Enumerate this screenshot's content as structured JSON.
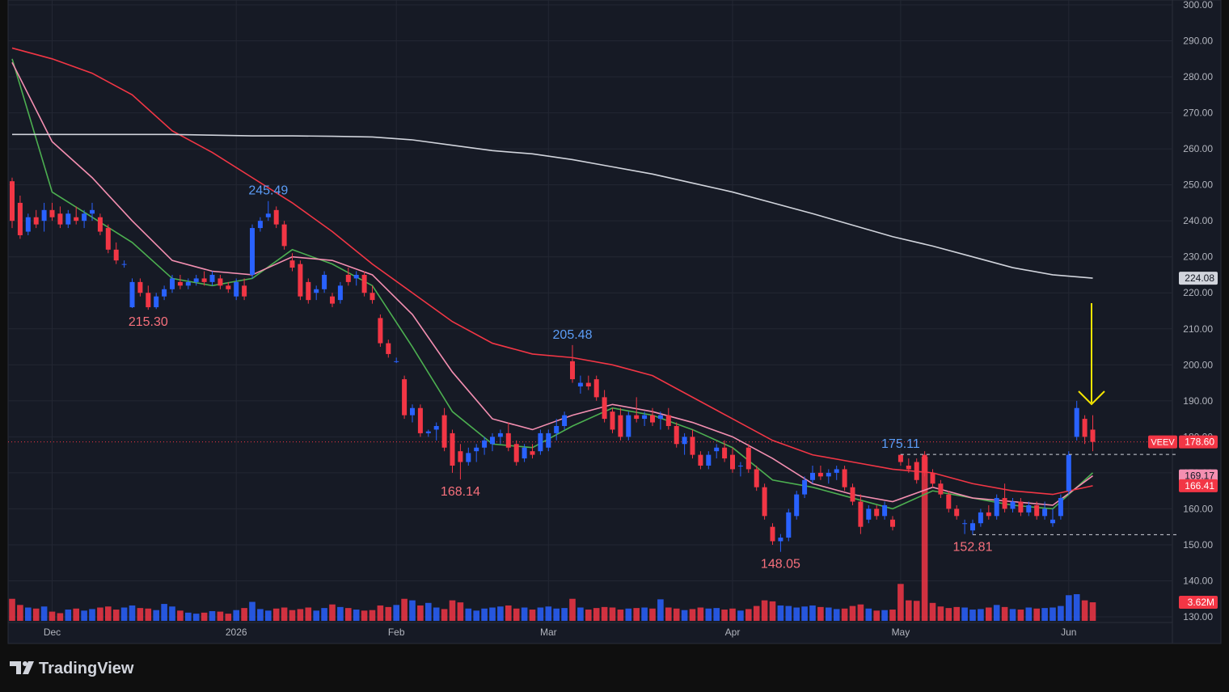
{
  "chart_data": {
    "type": "candlestick",
    "symbol": "VEEV",
    "ylim": [
      130,
      300
    ],
    "yticks": [
      {
        "value": 130,
        "label": "130.00"
      },
      {
        "value": 140,
        "label": "140.00"
      },
      {
        "value": 150,
        "label": "150.00"
      },
      {
        "value": 160,
        "label": "160.00"
      },
      {
        "value": 170,
        "label": "170.00"
      },
      {
        "value": 180,
        "label": "180.00"
      },
      {
        "value": 190,
        "label": "190.00"
      },
      {
        "value": 200,
        "label": "200.00"
      },
      {
        "value": 210,
        "label": "210.00"
      },
      {
        "value": 220,
        "label": "220.00"
      },
      {
        "value": 230,
        "label": "230.00"
      },
      {
        "value": 240,
        "label": "240.00"
      },
      {
        "value": 250,
        "label": "250.00"
      },
      {
        "value": 260,
        "label": "260.00"
      },
      {
        "value": 270,
        "label": "270.00"
      },
      {
        "value": 280,
        "label": "280.00"
      },
      {
        "value": 290,
        "label": "290.00"
      },
      {
        "value": 300,
        "label": "300.00"
      }
    ],
    "xticks": [
      {
        "value": 5,
        "label": "Dec"
      },
      {
        "value": 28,
        "label": "2026"
      },
      {
        "value": 48,
        "label": "Feb"
      },
      {
        "value": 67,
        "label": "Mar"
      },
      {
        "value": 90,
        "label": "Apr"
      },
      {
        "value": 111,
        "label": "May"
      },
      {
        "value": 132,
        "label": "Jun"
      }
    ],
    "grid": true,
    "up_color": "#2962ff",
    "down_color": "#f23645",
    "candles": [
      [
        251,
        252,
        238,
        240
      ],
      [
        245,
        247,
        235,
        236
      ],
      [
        237,
        242,
        236,
        241
      ],
      [
        241,
        243,
        238,
        239
      ],
      [
        240,
        245,
        237,
        243
      ],
      [
        243,
        245,
        240,
        241
      ],
      [
        242,
        244,
        238,
        239
      ],
      [
        239,
        243,
        238,
        242
      ],
      [
        241,
        244,
        239,
        240
      ],
      [
        240,
        243,
        238,
        242
      ],
      [
        242,
        245,
        240,
        243
      ],
      [
        241,
        242,
        236,
        237
      ],
      [
        238,
        239,
        231,
        232
      ],
      [
        232,
        234,
        228,
        229
      ],
      [
        228,
        229,
        227,
        228
      ],
      [
        216,
        224,
        215.8,
        223
      ],
      [
        223,
        224,
        219,
        220
      ],
      [
        220,
        222,
        215.3,
        216
      ],
      [
        216,
        220,
        215.5,
        219
      ],
      [
        219,
        222,
        218,
        221
      ],
      [
        221,
        225,
        220,
        224
      ],
      [
        223,
        225,
        221,
        222
      ],
      [
        222,
        224,
        221,
        223
      ],
      [
        223,
        225,
        222,
        224
      ],
      [
        224,
        226,
        222,
        223
      ],
      [
        223,
        226,
        222,
        225
      ],
      [
        224,
        225,
        221,
        222
      ],
      [
        222,
        223,
        220,
        221
      ],
      [
        219,
        224,
        218,
        223
      ],
      [
        222,
        224,
        218,
        219
      ],
      [
        225,
        239,
        224,
        238
      ],
      [
        238,
        241,
        237,
        240
      ],
      [
        241,
        245.49,
        240,
        242
      ],
      [
        243,
        244,
        238,
        239
      ],
      [
        239,
        240,
        232,
        233
      ],
      [
        229,
        231,
        226,
        227
      ],
      [
        228,
        229,
        218,
        219
      ],
      [
        223,
        224,
        217,
        218
      ],
      [
        220,
        222,
        218,
        221
      ],
      [
        221,
        226,
        220,
        225
      ],
      [
        219,
        220,
        216,
        217
      ],
      [
        218,
        223,
        217,
        222
      ],
      [
        225,
        227,
        222,
        223
      ],
      [
        224,
        226,
        222,
        225
      ],
      [
        225,
        226,
        219,
        220
      ],
      [
        220,
        222,
        217,
        218
      ],
      [
        213,
        214,
        205,
        206
      ],
      [
        206,
        207,
        202,
        203
      ],
      [
        201,
        202,
        200.5,
        201
      ],
      [
        196,
        197,
        185,
        186
      ],
      [
        186,
        189,
        184,
        188
      ],
      [
        188,
        189,
        180,
        181
      ],
      [
        181,
        182,
        180,
        181.5
      ],
      [
        182,
        184,
        179,
        183
      ],
      [
        186,
        188,
        176,
        177
      ],
      [
        181,
        182,
        170,
        172
      ],
      [
        176,
        178,
        168.14,
        173
      ],
      [
        173,
        177,
        172,
        175.5
      ],
      [
        176,
        178,
        173,
        177
      ],
      [
        177,
        180,
        175,
        179
      ],
      [
        178,
        181,
        176,
        180
      ],
      [
        180,
        182,
        178,
        181
      ],
      [
        181,
        184,
        176,
        177
      ],
      [
        178,
        179,
        172,
        173
      ],
      [
        174,
        178,
        173,
        177
      ],
      [
        176,
        178,
        174,
        175
      ],
      [
        176,
        182,
        175,
        181
      ],
      [
        177,
        182,
        176,
        181
      ],
      [
        181,
        185,
        179,
        183
      ],
      [
        183,
        187,
        182,
        186
      ],
      [
        201,
        205.48,
        195,
        196
      ],
      [
        194,
        197,
        192,
        195
      ],
      [
        195,
        197,
        193,
        194
      ],
      [
        196,
        197,
        190,
        191
      ],
      [
        191,
        193,
        184,
        185
      ],
      [
        187,
        188,
        181,
        182
      ],
      [
        186,
        188,
        179,
        180
      ],
      [
        180,
        187,
        179,
        186
      ],
      [
        186,
        191,
        184,
        185
      ],
      [
        185,
        187,
        183,
        186
      ],
      [
        186,
        188,
        183,
        184
      ],
      [
        185,
        187,
        182,
        186
      ],
      [
        186,
        188,
        182,
        183
      ],
      [
        183,
        184,
        177,
        178
      ],
      [
        178,
        181,
        175,
        180
      ],
      [
        180,
        182,
        174,
        175
      ],
      [
        175,
        176,
        171,
        172
      ],
      [
        172,
        176,
        171,
        175
      ],
      [
        176,
        178,
        174,
        177
      ],
      [
        177,
        179,
        173,
        174
      ],
      [
        175,
        177,
        170,
        171
      ],
      [
        172,
        173,
        169,
        172
      ],
      [
        177,
        178,
        170,
        171
      ],
      [
        171,
        172,
        165,
        166
      ],
      [
        166,
        167,
        157,
        158
      ],
      [
        155,
        156,
        150,
        151
      ],
      [
        151,
        153,
        148.05,
        152
      ],
      [
        152,
        160,
        151,
        159
      ],
      [
        158,
        165,
        157,
        164
      ],
      [
        164,
        169,
        163,
        168
      ],
      [
        168,
        172,
        167,
        170
      ],
      [
        170,
        172,
        168,
        169
      ],
      [
        169,
        171,
        167,
        170
      ],
      [
        170,
        172,
        168,
        171
      ],
      [
        171,
        172,
        165,
        166
      ],
      [
        166,
        167,
        161,
        162
      ],
      [
        162,
        164,
        153,
        155
      ],
      [
        157,
        161,
        156,
        160
      ],
      [
        160,
        161,
        157,
        158
      ],
      [
        158,
        162,
        157,
        161
      ],
      [
        157,
        158,
        154,
        155
      ],
      [
        175,
        175.11,
        172,
        173
      ],
      [
        172,
        174,
        170,
        171
      ],
      [
        173,
        174,
        167,
        168
      ],
      [
        175,
        176,
        169,
        170
      ],
      [
        170,
        171,
        166,
        167
      ],
      [
        167,
        168,
        163,
        164
      ],
      [
        164,
        165,
        159,
        160
      ],
      [
        160,
        161,
        157,
        158
      ],
      [
        156,
        157,
        153,
        156
      ],
      [
        154,
        157,
        152.81,
        156
      ],
      [
        156,
        160,
        155,
        159
      ],
      [
        159,
        161,
        157,
        158
      ],
      [
        158,
        164,
        157,
        163
      ],
      [
        163,
        167,
        159,
        160
      ],
      [
        160,
        163,
        159,
        162
      ],
      [
        162,
        163,
        158,
        159
      ],
      [
        159,
        162,
        158,
        161
      ],
      [
        161,
        162,
        157,
        158
      ],
      [
        158,
        162,
        157,
        160
      ],
      [
        156,
        160,
        155,
        157
      ],
      [
        158,
        164,
        157,
        163
      ],
      [
        165,
        176,
        164,
        175
      ],
      [
        180,
        190,
        179,
        188
      ],
      [
        185,
        186,
        178,
        180
      ],
      [
        182,
        186,
        176,
        178.6
      ]
    ],
    "last_close_label": "178.60",
    "volume": [
      4.3,
      3.1,
      2.6,
      2.4,
      2.8,
      1.8,
      1.5,
      2.2,
      2.4,
      2.0,
      2.3,
      2.6,
      2.8,
      2.2,
      2.6,
      3.0,
      2.5,
      2.4,
      2.1,
      3.3,
      2.8,
      2.0,
      1.6,
      1.4,
      1.6,
      1.9,
      1.8,
      1.4,
      2.1,
      2.5,
      3.7,
      2.3,
      2.0,
      2.4,
      2.6,
      2.1,
      2.3,
      2.6,
      2.0,
      2.5,
      3.2,
      2.7,
      2.5,
      2.2,
      2.0,
      2.1,
      3.0,
      2.7,
      3.1,
      4.3,
      4.0,
      3.0,
      3.5,
      2.6,
      2.3,
      4.0,
      3.6,
      2.4,
      2.0,
      2.4,
      2.6,
      2.8,
      3.0,
      2.4,
      2.6,
      2.2,
      2.6,
      2.8,
      2.4,
      2.5,
      4.3,
      2.6,
      2.2,
      2.5,
      2.7,
      2.6,
      2.2,
      2.4,
      2.5,
      2.6,
      2.4,
      4.2,
      2.6,
      2.4,
      2.1,
      2.3,
      2.6,
      2.4,
      2.5,
      2.2,
      2.4,
      2.0,
      2.3,
      2.9,
      4.0,
      3.8,
      3.0,
      2.9,
      2.6,
      2.8,
      3.0,
      2.7,
      2.6,
      2.3,
      2.4,
      2.9,
      3.2,
      2.4,
      2.0,
      2.1,
      2.2,
      7.2,
      4.0,
      3.9,
      32,
      3.5,
      2.8,
      2.5,
      2.7,
      2.6,
      2.2,
      2.3,
      2.6,
      3.1,
      2.7,
      2.3,
      2.2,
      2.6,
      2.4,
      2.5,
      2.6,
      2.9,
      5.0,
      5.2,
      4.0,
      3.62
    ],
    "volume_last_label": "3.62M",
    "ma_index": [
      0,
      5,
      10,
      15,
      20,
      25,
      30,
      35,
      40,
      45,
      50,
      55,
      60,
      65,
      70,
      75,
      80,
      85,
      90,
      95,
      100,
      105,
      110,
      115,
      120,
      125,
      130,
      135
    ],
    "ma_series": [
      {
        "color": "#4caf50",
        "values": [
          285,
          248,
          241,
          234,
          224,
          222,
          224,
          232,
          228,
          222,
          205,
          187,
          178,
          177,
          183,
          188,
          186,
          182,
          177,
          168,
          166,
          163,
          160,
          165,
          163,
          161,
          160,
          170
        ]
      },
      {
        "color": "#f48fb1",
        "values": [
          284,
          262,
          252,
          240,
          229,
          226,
          225,
          230,
          229,
          225,
          214,
          198,
          185,
          182,
          186,
          189,
          187,
          184,
          180,
          174,
          167,
          164,
          162,
          166,
          163,
          162,
          161,
          169.17
        ]
      },
      {
        "color": "#f23645",
        "values": [
          288,
          285,
          281,
          275,
          265,
          259,
          252,
          245,
          237,
          228,
          220,
          212,
          206,
          203,
          202,
          200,
          197,
          191,
          185,
          179,
          175,
          173,
          171,
          170,
          167,
          165,
          164,
          166.41
        ]
      },
      {
        "color": "#d1d4dc",
        "values": [
          264,
          264,
          264,
          264,
          264,
          263.8,
          263.6,
          263.6,
          263.5,
          263.3,
          262.5,
          261,
          259.5,
          258.6,
          257,
          255,
          253,
          250.5,
          248,
          245,
          242,
          238.8,
          235.6,
          233,
          230,
          227,
          225,
          224.08
        ]
      }
    ],
    "annotations": [
      {
        "text": "245.49",
        "index": 32,
        "kind": "high"
      },
      {
        "text": "215.30",
        "index": 17,
        "kind": "low"
      },
      {
        "text": "205.48",
        "index": 70,
        "kind": "high"
      },
      {
        "text": "168.14",
        "index": 56,
        "kind": "low"
      },
      {
        "text": "148.05",
        "index": 96,
        "kind": "low"
      },
      {
        "text": "175.11",
        "index": 111,
        "kind": "high",
        "dashed": true
      },
      {
        "text": "152.81",
        "index": 120,
        "kind": "low",
        "dashed": true
      }
    ]
  },
  "watermark": "TradingView"
}
